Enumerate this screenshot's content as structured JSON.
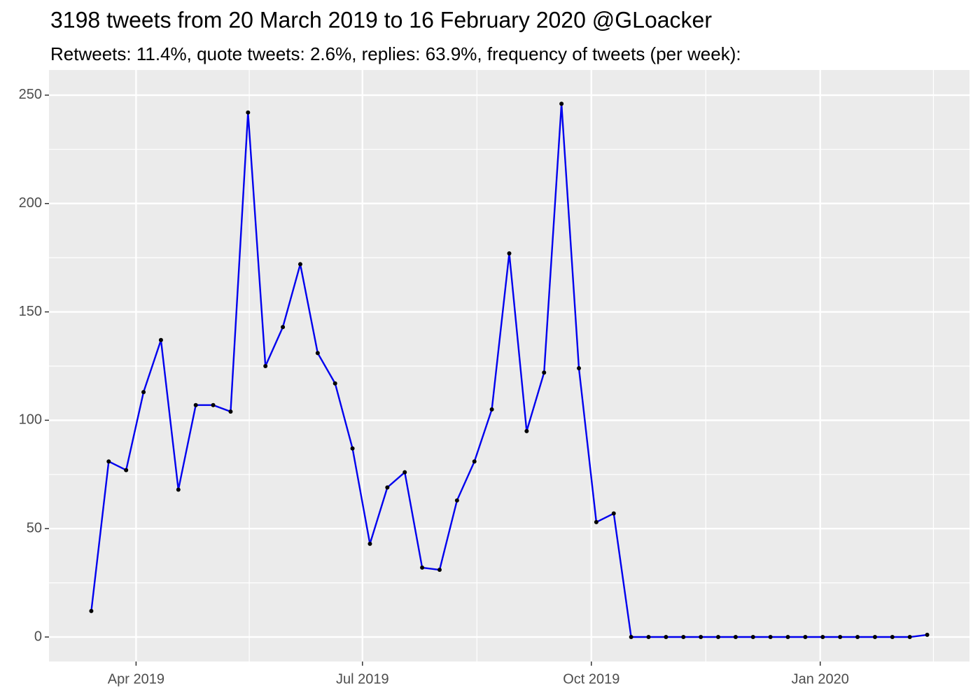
{
  "chart_data": {
    "type": "line",
    "title": "3198 tweets from 20 March 2019 to 16 February 2020 @GLoacker",
    "subtitle": "Retweets: 11.4%, quote tweets: 2.6%, replies: 63.9%, frequency of tweets (per week):",
    "x": [
      "2019-03-14",
      "2019-03-21",
      "2019-03-28",
      "2019-04-04",
      "2019-04-11",
      "2019-04-18",
      "2019-04-25",
      "2019-05-02",
      "2019-05-09",
      "2019-05-16",
      "2019-05-23",
      "2019-05-30",
      "2019-06-06",
      "2019-06-13",
      "2019-06-20",
      "2019-06-27",
      "2019-07-04",
      "2019-07-11",
      "2019-07-18",
      "2019-07-25",
      "2019-08-01",
      "2019-08-08",
      "2019-08-15",
      "2019-08-22",
      "2019-08-29",
      "2019-09-05",
      "2019-09-12",
      "2019-09-19",
      "2019-09-26",
      "2019-10-03",
      "2019-10-10",
      "2019-10-17",
      "2019-10-24",
      "2019-10-31",
      "2019-11-07",
      "2019-11-14",
      "2019-11-21",
      "2019-11-28",
      "2019-12-05",
      "2019-12-12",
      "2019-12-19",
      "2019-12-26",
      "2020-01-02",
      "2020-01-09",
      "2020-01-16",
      "2020-01-23",
      "2020-01-30",
      "2020-02-06",
      "2020-02-13"
    ],
    "values": [
      12,
      81,
      77,
      113,
      137,
      68,
      107,
      107,
      104,
      242,
      125,
      143,
      172,
      131,
      117,
      87,
      43,
      69,
      76,
      32,
      31,
      63,
      81,
      105,
      177,
      95,
      122,
      246,
      124,
      53,
      57,
      0,
      0,
      0,
      0,
      0,
      0,
      0,
      0,
      0,
      0,
      0,
      0,
      0,
      0,
      0,
      0,
      0,
      1
    ],
    "color": "#0000ee",
    "point_color": "#000000",
    "xlim": [
      "2019-02-25",
      "2020-03-01"
    ],
    "xticks": [
      {
        "value": "2019-04-01",
        "label": "Apr 2019"
      },
      {
        "value": "2019-07-01",
        "label": "Jul 2019"
      },
      {
        "value": "2019-10-01",
        "label": "Oct 2019"
      },
      {
        "value": "2020-01-01",
        "label": "Jan 2020"
      }
    ],
    "ylim": [
      -11.3,
      261.6
    ],
    "yticks": [
      0,
      50,
      100,
      150,
      200,
      250
    ],
    "grid": true
  }
}
